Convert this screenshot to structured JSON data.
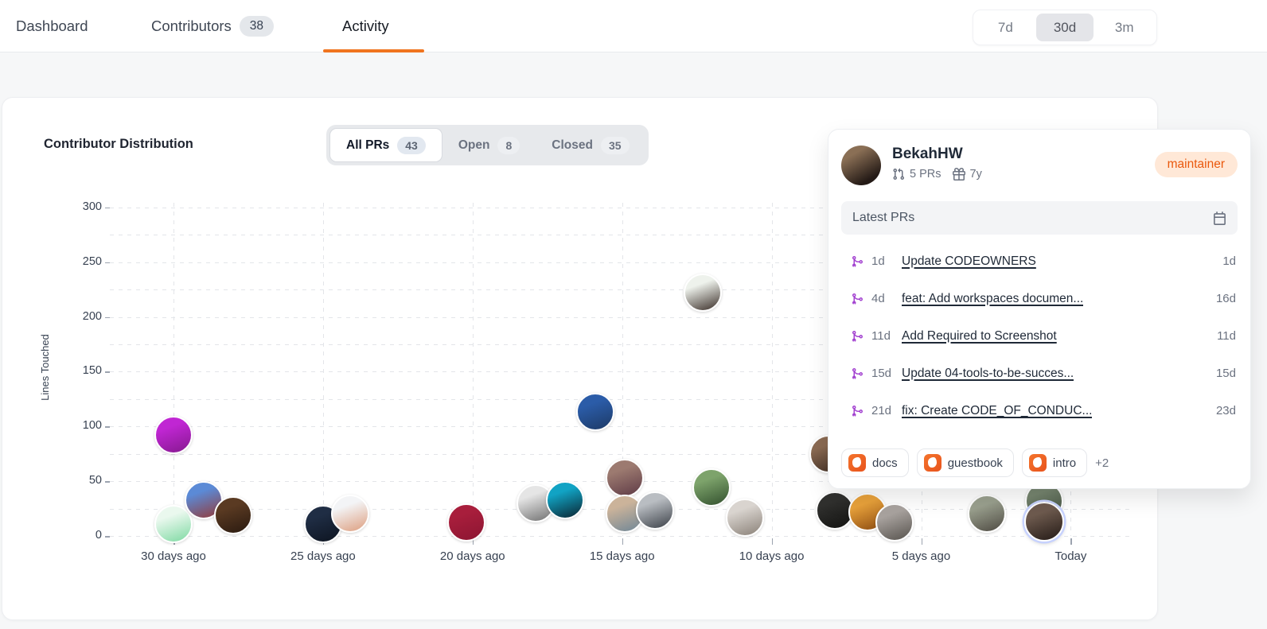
{
  "header": {
    "tabs": [
      {
        "label": "Dashboard",
        "active": false
      },
      {
        "label": "Contributors",
        "badge": "38",
        "active": false
      },
      {
        "label": "Activity",
        "active": true
      }
    ],
    "range": {
      "options": [
        "7d",
        "30d",
        "3m"
      ],
      "selected": "30d"
    }
  },
  "card": {
    "title": "Contributor Distribution",
    "segments": [
      {
        "label": "All PRs",
        "count": "43",
        "active": true
      },
      {
        "label": "Open",
        "count": "8",
        "active": false
      },
      {
        "label": "Closed",
        "count": "35",
        "active": false
      }
    ]
  },
  "chart_data": {
    "type": "scatter",
    "title": "Contributor Distribution",
    "ylabel": "Lines Touched",
    "ylim": [
      0,
      300
    ],
    "ytick_label_step": 50,
    "ygrid_step": 25,
    "grid": "dashed",
    "x_ticks": [
      {
        "label": "30 days ago",
        "days_ago": 30
      },
      {
        "label": "25 days ago",
        "days_ago": 25
      },
      {
        "label": "20 days ago",
        "days_ago": 20
      },
      {
        "label": "15 days ago",
        "days_ago": 15
      },
      {
        "label": "10 days ago",
        "days_ago": 10
      },
      {
        "label": "5 days ago",
        "days_ago": 5
      },
      {
        "label": "Today",
        "days_ago": 0
      }
    ],
    "points": [
      {
        "days_ago": 30.0,
        "lines": 92,
        "colors": [
          "#c026d3",
          "#86198f"
        ],
        "highlighted": false
      },
      {
        "days_ago": 30.0,
        "lines": 11,
        "colors": [
          "#eaf8ee",
          "#7ed9a2"
        ],
        "highlighted": false
      },
      {
        "days_ago": 29.0,
        "lines": 33,
        "colors": [
          "#5b8ad6",
          "#933a3a"
        ],
        "highlighted": false
      },
      {
        "days_ago": 28.0,
        "lines": 19,
        "colors": [
          "#5a3a22",
          "#2a1a10"
        ],
        "highlighted": false
      },
      {
        "days_ago": 25.0,
        "lines": 11,
        "colors": [
          "#1f2d44",
          "#0d1420"
        ],
        "highlighted": false
      },
      {
        "days_ago": 24.1,
        "lines": 20,
        "colors": [
          "#f3f4f6",
          "#dd9e7f"
        ],
        "highlighted": false
      },
      {
        "days_ago": 20.2,
        "lines": 12,
        "colors": [
          "#a81e3c",
          "#8c1532"
        ],
        "highlighted": false
      },
      {
        "days_ago": 17.9,
        "lines": 30,
        "colors": [
          "#e5e5e5",
          "#6f6f6f"
        ],
        "highlighted": false
      },
      {
        "days_ago": 16.9,
        "lines": 33,
        "colors": [
          "#11a3c4",
          "#0b2430"
        ],
        "highlighted": false
      },
      {
        "days_ago": 15.9,
        "lines": 113,
        "colors": [
          "#2b5ca8",
          "#1d3a66"
        ],
        "highlighted": false
      },
      {
        "days_ago": 14.9,
        "lines": 53,
        "colors": [
          "#9c7a70",
          "#5f3b46"
        ],
        "highlighted": false
      },
      {
        "days_ago": 14.9,
        "lines": 20,
        "colors": [
          "#cbb39a",
          "#6f8696"
        ],
        "highlighted": false
      },
      {
        "days_ago": 13.9,
        "lines": 23,
        "colors": [
          "#b9bdc2",
          "#3c4148"
        ],
        "highlighted": false
      },
      {
        "days_ago": 12.3,
        "lines": 222,
        "colors": [
          "#eef2ec",
          "#3a2e28"
        ],
        "highlighted": false
      },
      {
        "days_ago": 12.0,
        "lines": 44,
        "colors": [
          "#7da36b",
          "#32502e"
        ],
        "highlighted": false
      },
      {
        "days_ago": 10.9,
        "lines": 17,
        "colors": [
          "#d9d4cf",
          "#8a8178"
        ],
        "highlighted": false
      },
      {
        "days_ago": 8.1,
        "lines": 75,
        "colors": [
          "#8a6a52",
          "#3f2d22"
        ],
        "highlighted": false
      },
      {
        "days_ago": 7.9,
        "lines": 23,
        "colors": [
          "#30302e",
          "#121210"
        ],
        "highlighted": false
      },
      {
        "days_ago": 6.8,
        "lines": 22,
        "colors": [
          "#e9a23b",
          "#8a4a10"
        ],
        "highlighted": false
      },
      {
        "days_ago": 5.9,
        "lines": 12,
        "colors": [
          "#a8a29e",
          "#57534e"
        ],
        "highlighted": false
      },
      {
        "days_ago": 2.8,
        "lines": 20,
        "colors": [
          "#9aa08e",
          "#4e4a42"
        ],
        "highlighted": false
      },
      {
        "days_ago": 0.9,
        "lines": 32,
        "colors": [
          "#76856f",
          "#3c4a3a"
        ],
        "highlighted": false
      },
      {
        "days_ago": 0.9,
        "lines": 13,
        "colors": [
          "#6d5a4e",
          "#241a16"
        ],
        "highlighted": true
      }
    ]
  },
  "popup": {
    "name": "BekahHW",
    "role": "maintainer",
    "prs": "5 PRs",
    "tenure": "7y",
    "section_title": "Latest PRs",
    "prs_list": [
      {
        "age": "1d",
        "title": "Update CODEOWNERS",
        "merged": "1d"
      },
      {
        "age": "4d",
        "title": "feat: Add workspaces documen...",
        "merged": "16d"
      },
      {
        "age": "11d",
        "title": "Add Required to Screenshot",
        "merged": "11d"
      },
      {
        "age": "15d",
        "title": "Update 04-tools-to-be-succes...",
        "merged": "15d"
      },
      {
        "age": "21d",
        "title": "fix: Create CODE_OF_CONDUC...",
        "merged": "23d"
      }
    ],
    "tags": [
      "docs",
      "guestbook",
      "intro"
    ],
    "more_tags": "+2",
    "accent_color": "#ea580c"
  }
}
